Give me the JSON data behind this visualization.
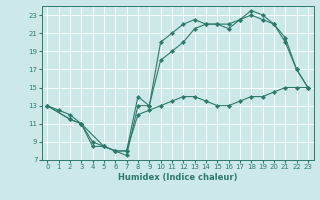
{
  "xlabel": "Humidex (Indice chaleur)",
  "bg_color": "#cce8e8",
  "line_color": "#2d7a6a",
  "grid_color": "#ffffff",
  "xlim": [
    -0.5,
    23.5
  ],
  "ylim": [
    7,
    24
  ],
  "yticks": [
    7,
    9,
    11,
    13,
    15,
    17,
    19,
    21,
    23
  ],
  "xticks": [
    0,
    1,
    2,
    3,
    4,
    5,
    6,
    7,
    8,
    9,
    10,
    11,
    12,
    13,
    14,
    15,
    16,
    17,
    18,
    19,
    20,
    21,
    22,
    23
  ],
  "line1_x": [
    0,
    1,
    2,
    3,
    4,
    5,
    6,
    7,
    8,
    9,
    10,
    11,
    12,
    13,
    14,
    15,
    16,
    17,
    18,
    19,
    20,
    21,
    22,
    23
  ],
  "line1_y": [
    13,
    12.5,
    12,
    11,
    8.5,
    8.5,
    8,
    8,
    12,
    12.5,
    13,
    13.5,
    14,
    14,
    13.5,
    13,
    13,
    13.5,
    14,
    14,
    14.5,
    15,
    15,
    15
  ],
  "line2_x": [
    0,
    2,
    3,
    4,
    5,
    6,
    7,
    8,
    9,
    10,
    11,
    12,
    13,
    14,
    15,
    16,
    17,
    18,
    19,
    20,
    21,
    22,
    23
  ],
  "line2_y": [
    13,
    11.5,
    11,
    9,
    8.5,
    8,
    8,
    14,
    13,
    18,
    19,
    20,
    21.5,
    22,
    22,
    22,
    22.5,
    23,
    22.5,
    22,
    20,
    17,
    15
  ],
  "line3_x": [
    0,
    2,
    3,
    5,
    6,
    7,
    8,
    9,
    10,
    11,
    12,
    13,
    14,
    15,
    16,
    17,
    18,
    19,
    20,
    21,
    22,
    23
  ],
  "line3_y": [
    13,
    11.5,
    11,
    8.5,
    8,
    7.5,
    13,
    13,
    20,
    21,
    22,
    22.5,
    22,
    22,
    21.5,
    22.5,
    23.5,
    23,
    22,
    20.5,
    17,
    15
  ]
}
